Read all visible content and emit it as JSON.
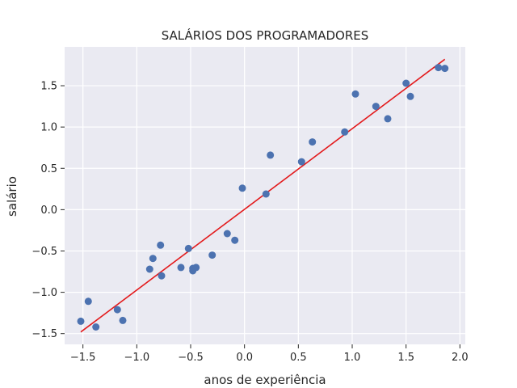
{
  "chart_data": {
    "type": "scatter",
    "title": "SALÁRIOS DOS PROGRAMADORES",
    "xlabel": "anos de experiência",
    "ylabel": "salário",
    "xlim": [
      -1.67,
      2.05
    ],
    "ylim": [
      -1.63,
      1.97
    ],
    "xticks": [
      -1.5,
      -1.0,
      -0.5,
      0.0,
      0.5,
      1.0,
      1.5,
      2.0
    ],
    "xtick_labels": [
      "−1.5",
      "−1.0",
      "−0.5",
      "0.0",
      "0.5",
      "1.0",
      "1.5",
      "2.0"
    ],
    "yticks": [
      -1.5,
      -1.0,
      -0.5,
      0.0,
      0.5,
      1.0,
      1.5
    ],
    "ytick_labels": [
      "−1.5",
      "−1.0",
      "−0.5",
      "0.0",
      "0.5",
      "1.0",
      "1.5"
    ],
    "grid": true,
    "colors": {
      "background": "#eaeaf2",
      "grid": "#ffffff",
      "points": "#4c72b0",
      "line": "#e31a1c"
    },
    "series": [
      {
        "type": "scatter",
        "x": [
          -1.52,
          -1.45,
          -1.38,
          -1.18,
          -1.13,
          -0.88,
          -0.85,
          -0.78,
          -0.77,
          -0.59,
          -0.52,
          -0.48,
          -0.48,
          -0.45,
          -0.47,
          -0.3,
          -0.16,
          -0.09,
          -0.02,
          0.2,
          0.24,
          0.53,
          0.63,
          0.93,
          1.03,
          1.22,
          1.33,
          1.5,
          1.54,
          1.8,
          1.86
        ],
        "y": [
          -1.35,
          -1.11,
          -1.42,
          -1.21,
          -1.34,
          -0.72,
          -0.59,
          -0.43,
          -0.8,
          -0.7,
          -0.47,
          -0.71,
          -0.74,
          -0.7,
          -0.71,
          -0.55,
          -0.29,
          -0.37,
          0.26,
          0.19,
          0.66,
          0.58,
          0.82,
          0.94,
          1.4,
          1.25,
          1.1,
          1.53,
          1.37,
          1.72,
          1.71
        ]
      },
      {
        "type": "line",
        "x": [
          -1.52,
          1.86
        ],
        "y": [
          -1.48,
          1.82
        ]
      }
    ]
  }
}
